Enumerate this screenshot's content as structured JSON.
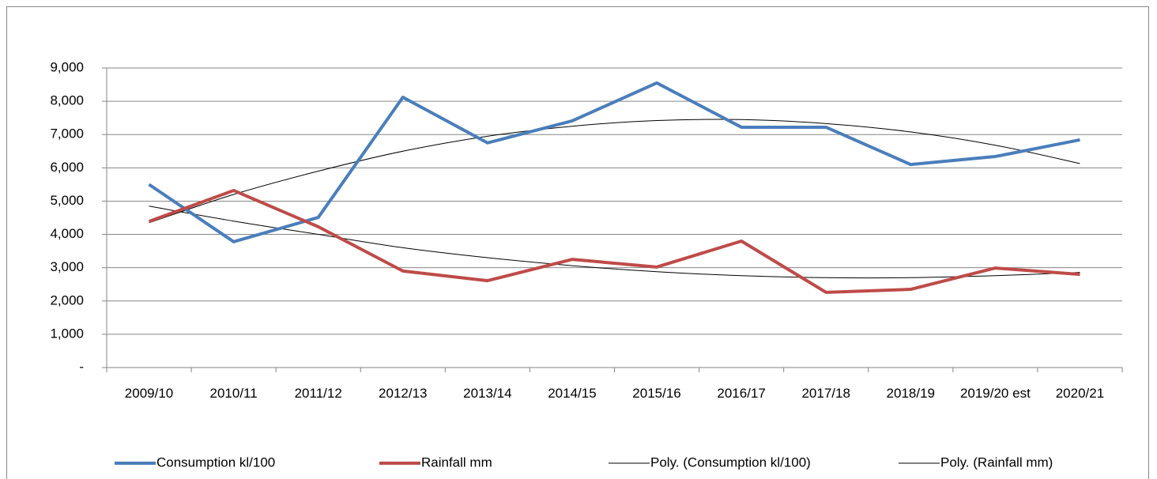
{
  "chart_data": {
    "type": "line",
    "categories": [
      "2009/10",
      "2010/11",
      "2011/12",
      "2012/13",
      "2013/14",
      "2014/15",
      "2015/16",
      "2016/17",
      "2017/18",
      "2018/19",
      "2019/20 est",
      "2020/21"
    ],
    "series": [
      {
        "name": "Consumption kl/100",
        "color": "#4a7ebb",
        "width": 4,
        "values": [
          5500,
          3780,
          4510,
          8120,
          6750,
          7410,
          8550,
          7220,
          7220,
          6100,
          6340,
          6840
        ]
      },
      {
        "name": "Rainfall mm",
        "color": "#be4b48",
        "width": 4,
        "values": [
          4390,
          5320,
          4230,
          2900,
          2610,
          3250,
          3020,
          3800,
          2260,
          2350,
          2990,
          2800
        ]
      },
      {
        "name": "Poly. (Consumption kl/100)",
        "color": "#000000",
        "width": 1,
        "values": [
          4350,
          5200,
          5900,
          6500,
          6950,
          7250,
          7420,
          7450,
          7330,
          7080,
          6680,
          6130
        ]
      },
      {
        "name": "Poly. (Rainfall mm)",
        "color": "#000000",
        "width": 1,
        "values": [
          4850,
          4400,
          4000,
          3600,
          3300,
          3060,
          2880,
          2760,
          2700,
          2700,
          2760,
          2860
        ]
      }
    ],
    "ylim": [
      0,
      9000
    ],
    "yticks": [
      {
        "value": 0,
        "label": "-"
      },
      {
        "value": 1000,
        "label": "1,000"
      },
      {
        "value": 2000,
        "label": "2,000"
      },
      {
        "value": 3000,
        "label": "3,000"
      },
      {
        "value": 4000,
        "label": "4,000"
      },
      {
        "value": 5000,
        "label": "5,000"
      },
      {
        "value": 6000,
        "label": "6,000"
      },
      {
        "value": 7000,
        "label": "7,000"
      },
      {
        "value": 8000,
        "label": "8,000"
      },
      {
        "value": 9000,
        "label": "9,000"
      }
    ],
    "grid": true,
    "legend": "bottom"
  }
}
